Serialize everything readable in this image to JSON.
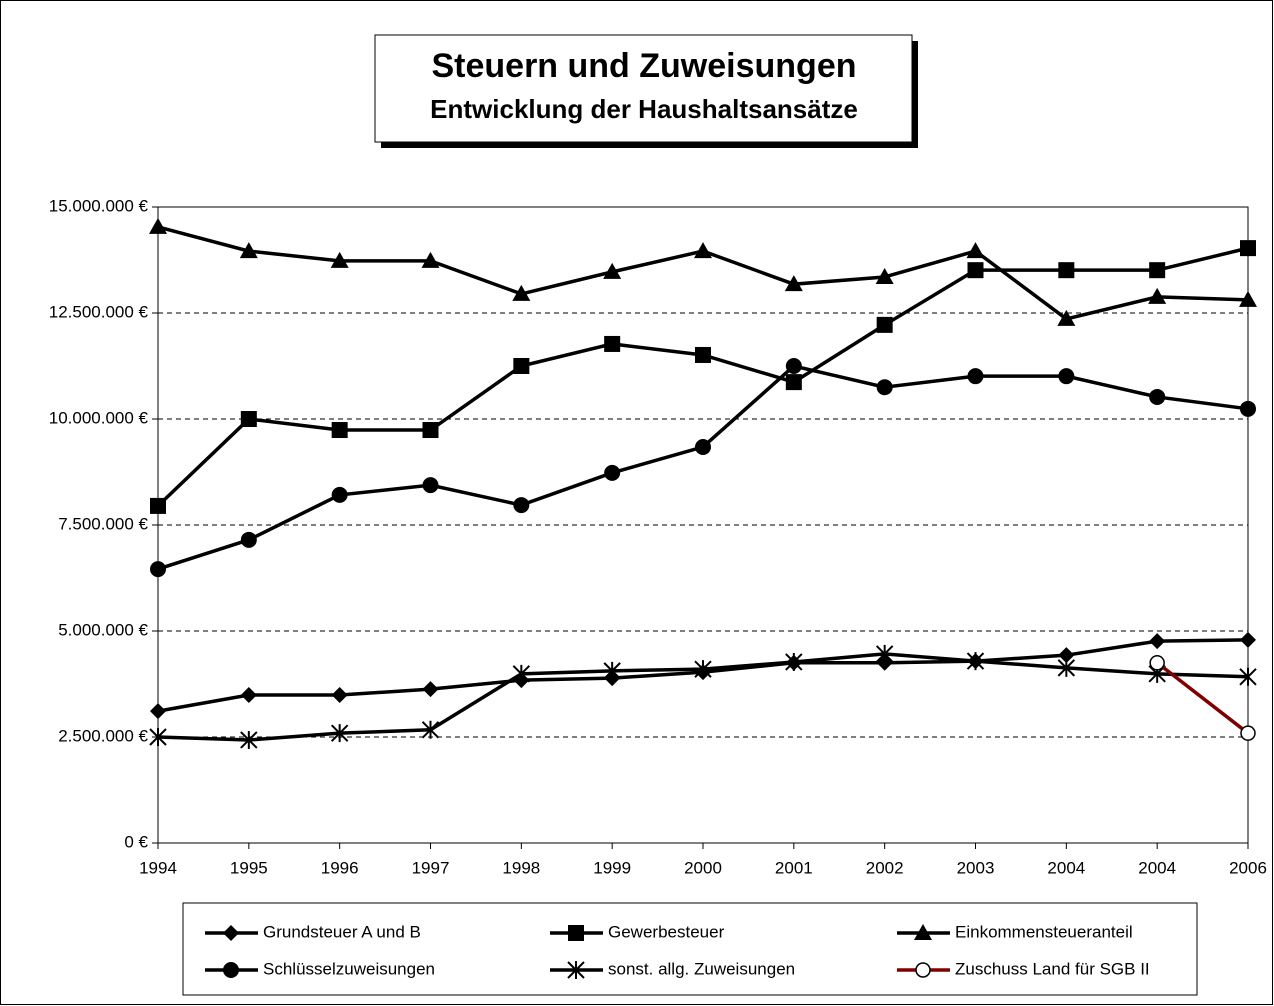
{
  "chart_data": {
    "type": "line",
    "title": "Steuern und Zuweisungen",
    "subtitle": "Entwicklung der Haushaltsansätze",
    "categories": [
      "1994",
      "1995",
      "1996",
      "1997",
      "1998",
      "1999",
      "2000",
      "2001",
      "2002",
      "2003",
      "2004",
      "2004",
      "2006"
    ],
    "ylim": [
      0,
      15000000
    ],
    "yticks": [
      {
        "value": 0,
        "label": "0 €"
      },
      {
        "value": 2500000,
        "label": "2.500.000 €"
      },
      {
        "value": 5000000,
        "label": "5.000.000 €"
      },
      {
        "value": 7500000,
        "label": "7.500.000 €"
      },
      {
        "value": 10000000,
        "label": "10.000.000 €"
      },
      {
        "value": 12500000,
        "label": "12.500.000 €"
      },
      {
        "value": 15000000,
        "label": "15.000.000 €"
      }
    ],
    "grid": true,
    "series": [
      {
        "name": "Grundsteuer A und B",
        "color": "#000000",
        "marker": "diamond",
        "values": [
          3110000,
          3490000,
          3490000,
          3630000,
          3840000,
          3890000,
          4030000,
          4250000,
          4250000,
          4290000,
          4430000,
          4760000,
          4790000
        ]
      },
      {
        "name": "Gewerbesteuer",
        "color": "#000000",
        "marker": "square",
        "values": [
          7950000,
          10000000,
          9740000,
          9740000,
          11250000,
          11770000,
          11510000,
          10870000,
          12220000,
          13510000,
          13510000,
          13510000,
          14030000
        ]
      },
      {
        "name": "Einkommensteueranteil",
        "color": "#000000",
        "marker": "triangle",
        "values": [
          14530000,
          13960000,
          13730000,
          13730000,
          12950000,
          13470000,
          13960000,
          13180000,
          13350000,
          13960000,
          12360000,
          12880000,
          12810000
        ]
      },
      {
        "name": "Schlüsselzuweisungen",
        "color": "#000000",
        "marker": "circle",
        "values": [
          6460000,
          7150000,
          8210000,
          8440000,
          7970000,
          8730000,
          9340000,
          11250000,
          10750000,
          11010000,
          11010000,
          10520000,
          10240000
        ]
      },
      {
        "name": "sonst. allg. Zuweisungen",
        "color": "#000000",
        "marker": "star",
        "values": [
          2500000,
          2430000,
          2590000,
          2670000,
          3990000,
          4060000,
          4100000,
          4270000,
          4460000,
          4290000,
          4130000,
          3990000,
          3920000
        ]
      },
      {
        "name": "Zuschuss Land für SGB II",
        "color": "#800000",
        "marker": "open-circle",
        "values": [
          null,
          null,
          null,
          null,
          null,
          null,
          null,
          null,
          null,
          null,
          null,
          4250000,
          2590000
        ]
      }
    ]
  }
}
